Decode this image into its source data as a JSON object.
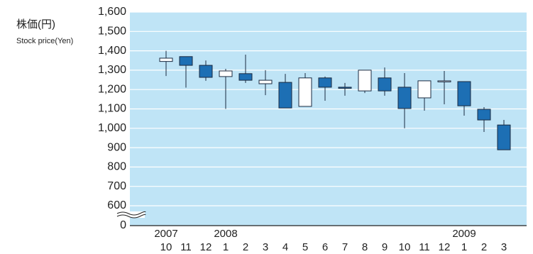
{
  "chart_data": {
    "type": "candlestick",
    "y_label": "株価(円)",
    "y_label_sub": "Stock price(Yen)",
    "categories": [
      "10",
      "11",
      "12",
      "1",
      "2",
      "3",
      "4",
      "5",
      "6",
      "7",
      "8",
      "9",
      "10",
      "11",
      "12",
      "1",
      "2",
      "3"
    ],
    "year_labels": [
      "2007",
      null,
      null,
      "2008",
      null,
      null,
      null,
      null,
      null,
      null,
      null,
      null,
      null,
      null,
      null,
      "2009",
      null,
      null
    ],
    "open": [
      1345,
      1370,
      1325,
      1267,
      1282,
      1230,
      1237,
      1113,
      1260,
      1212,
      1193,
      1260,
      1212,
      1157,
      1240,
      1241,
      1098,
      1017
    ],
    "high": [
      1400,
      1370,
      1350,
      1307,
      1380,
      1300,
      1281,
      1285,
      1267,
      1234,
      1300,
      1314,
      1285,
      1245,
      1296,
      1241,
      1109,
      1043
    ],
    "low": [
      1270,
      1210,
      1245,
      1100,
      1234,
      1171,
      1105,
      1113,
      1142,
      1168,
      1182,
      1168,
      1000,
      1091,
      1124,
      1065,
      981,
      889
    ],
    "close": [
      1362,
      1325,
      1263,
      1296,
      1248,
      1248,
      1105,
      1260,
      1212,
      1208,
      1300,
      1193,
      1102,
      1245,
      1245,
      1116,
      1043,
      889
    ],
    "up_color": "#ffffff",
    "down_color": "#1d6fb4",
    "ylim": [
      0,
      1600
    ],
    "axis_break": [
      0,
      600
    ],
    "yticks": [
      0,
      600,
      700,
      800,
      900,
      {
        "value": 1000,
        "label": "1,000"
      },
      {
        "value": 1100,
        "label": "1,100"
      },
      {
        "value": 1200,
        "label": "1,200"
      },
      {
        "value": 1300,
        "label": "1,300"
      },
      {
        "value": 1400,
        "label": "1,400"
      },
      {
        "value": 1500,
        "label": "1,500"
      },
      {
        "value": 1600,
        "label": "1,600"
      }
    ],
    "grid": true
  }
}
